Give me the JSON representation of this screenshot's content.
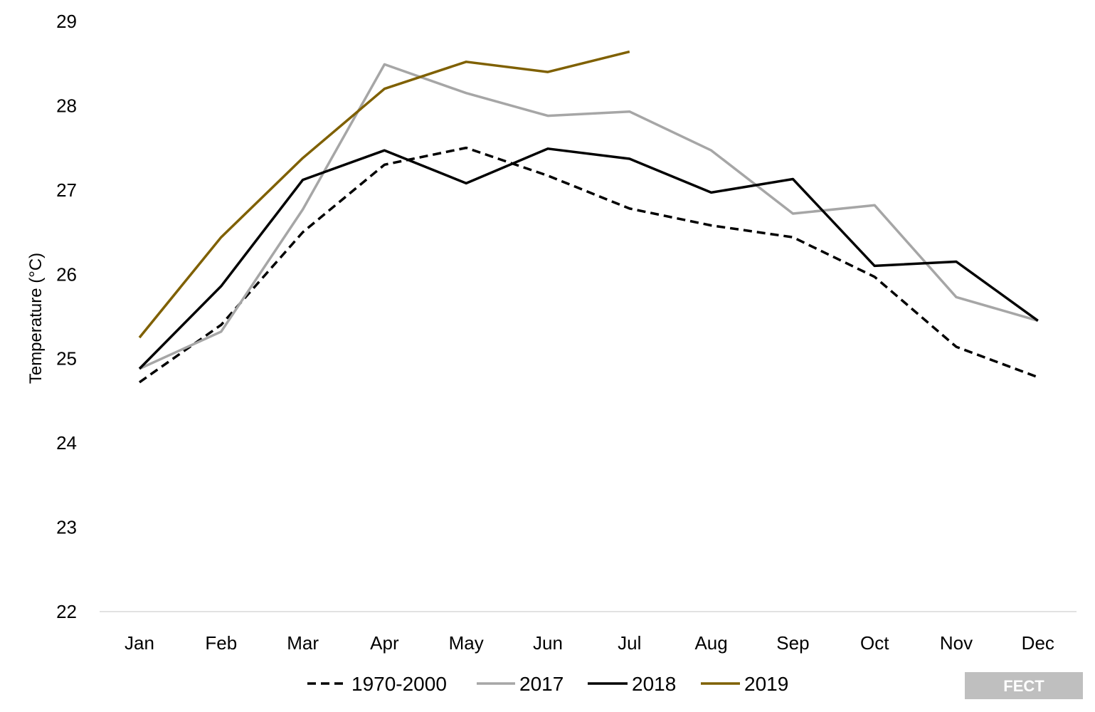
{
  "chart_data": {
    "type": "line",
    "title": "",
    "xlabel": "",
    "ylabel": "Temperature (°C)",
    "ylim": [
      22,
      29
    ],
    "yticks": [
      22,
      23,
      24,
      25,
      26,
      27,
      28,
      29
    ],
    "grid": false,
    "legend": "bottom",
    "categories": [
      "Jan",
      "Feb",
      "Mar",
      "Apr",
      "May",
      "Jun",
      "Jul",
      "Aug",
      "Sep",
      "Oct",
      "Nov",
      "Dec"
    ],
    "series": [
      {
        "name": "1970-2000",
        "color": "#000000",
        "dash": true,
        "values": [
          24.72,
          25.4,
          26.5,
          27.3,
          27.5,
          27.17,
          26.78,
          26.58,
          26.44,
          25.97,
          25.14,
          24.78
        ]
      },
      {
        "name": "2017",
        "color": "#a6a6a6",
        "dash": false,
        "values": [
          24.88,
          25.32,
          26.77,
          28.49,
          28.15,
          27.88,
          27.93,
          27.47,
          26.72,
          26.82,
          25.73,
          25.45
        ]
      },
      {
        "name": "2018",
        "color": "#000000",
        "dash": false,
        "values": [
          24.88,
          25.86,
          27.12,
          27.47,
          27.08,
          27.49,
          27.37,
          26.97,
          27.13,
          26.1,
          26.15,
          25.45
        ]
      },
      {
        "name": "2019",
        "color": "#7f6000",
        "dash": false,
        "values": [
          25.25,
          26.44,
          27.38,
          28.2,
          28.52,
          28.4,
          28.64,
          null,
          null,
          null,
          null,
          null
        ]
      }
    ]
  },
  "watermark": {
    "text": "FECT",
    "color": "#bfbfbf"
  }
}
